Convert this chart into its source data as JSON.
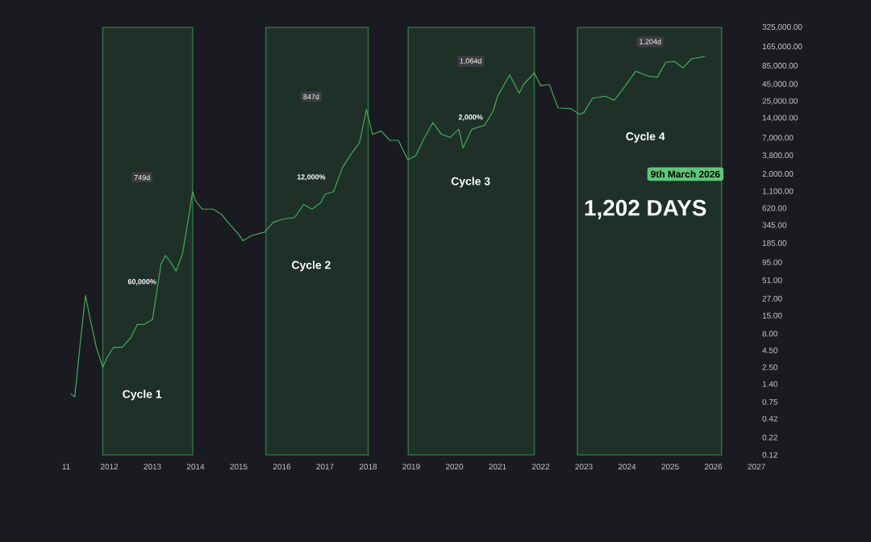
{
  "chart_data": {
    "type": "line",
    "log": true,
    "grid": false,
    "marker": "none",
    "line_style": "solid",
    "xlim": [
      2011,
      2027
    ],
    "ylim": [
      0.12,
      325000
    ],
    "xticks": [
      {
        "value": 2011,
        "label": "11"
      },
      2012,
      2013,
      2014,
      2015,
      2016,
      2017,
      2018,
      2019,
      2020,
      2021,
      2022,
      2023,
      2024,
      2025,
      2026,
      2027
    ],
    "yticks": [
      {
        "value": 325000,
        "label": "325,000.00"
      },
      {
        "value": 165000,
        "label": "165,000.00"
      },
      {
        "value": 85000,
        "label": "85,000.00"
      },
      {
        "value": 45000,
        "label": "45,000.00"
      },
      {
        "value": 25000,
        "label": "25,000.00"
      },
      {
        "value": 14000,
        "label": "14,000.00"
      },
      {
        "value": 7000,
        "label": "7,000.00"
      },
      {
        "value": 3800,
        "label": "3,800.00"
      },
      {
        "value": 2000,
        "label": "2,000.00"
      },
      {
        "value": 1100,
        "label": "1,100.00"
      },
      {
        "value": 620,
        "label": "620.00"
      },
      {
        "value": 345,
        "label": "345.00"
      },
      {
        "value": 185,
        "label": "185.00"
      },
      {
        "value": 95,
        "label": "95.00"
      },
      {
        "value": 51,
        "label": "51.00"
      },
      {
        "value": 27,
        "label": "27.00"
      },
      {
        "value": 15,
        "label": "15.00"
      },
      {
        "value": 8,
        "label": "8.00"
      },
      {
        "value": 4.5,
        "label": "4.50"
      },
      {
        "value": 2.5,
        "label": "2.50"
      },
      {
        "value": 1.4,
        "label": "1.40"
      },
      {
        "value": 0.75,
        "label": "0.75"
      },
      {
        "value": 0.42,
        "label": "0.42"
      },
      {
        "value": 0.22,
        "label": "0.22"
      },
      {
        "value": 0.12,
        "label": "0.12"
      }
    ],
    "x": [
      2011.1,
      2011.2,
      2011.35,
      2011.45,
      2011.55,
      2011.7,
      2011.85,
      2011.95,
      2012.1,
      2012.3,
      2012.5,
      2012.65,
      2012.8,
      2013.0,
      2013.2,
      2013.3,
      2013.4,
      2013.55,
      2013.7,
      2013.85,
      2013.93,
      2014.0,
      2014.15,
      2014.4,
      2014.6,
      2014.8,
      2015.0,
      2015.1,
      2015.3,
      2015.6,
      2015.8,
      2016.0,
      2016.3,
      2016.5,
      2016.7,
      2016.9,
      2017.0,
      2017.2,
      2017.4,
      2017.6,
      2017.8,
      2017.96,
      2018.1,
      2018.3,
      2018.5,
      2018.7,
      2018.92,
      2019.1,
      2019.3,
      2019.5,
      2019.7,
      2019.9,
      2020.1,
      2020.2,
      2020.4,
      2020.7,
      2020.9,
      2021.0,
      2021.28,
      2021.5,
      2021.6,
      2021.85,
      2022.0,
      2022.2,
      2022.4,
      2022.7,
      2022.9,
      2023.0,
      2023.2,
      2023.5,
      2023.7,
      2023.9,
      2024.2,
      2024.5,
      2024.7,
      2024.9,
      2025.1,
      2025.3,
      2025.5,
      2025.7,
      2025.8
    ],
    "series": [
      {
        "color": "#3fae5a",
        "values": [
          1.0,
          0.9,
          8,
          30,
          14,
          5,
          2.5,
          3.5,
          5,
          5,
          7,
          11,
          11,
          13,
          90,
          120,
          100,
          70,
          130,
          500,
          1100,
          800,
          600,
          600,
          500,
          350,
          250,
          200,
          240,
          270,
          380,
          420,
          450,
          700,
          600,
          750,
          1000,
          1100,
          2500,
          4000,
          6000,
          19000,
          8000,
          9000,
          6500,
          6500,
          3300,
          3800,
          7000,
          12000,
          8000,
          7200,
          9500,
          5000,
          9500,
          11000,
          18000,
          30000,
          63000,
          33000,
          45000,
          67000,
          43000,
          45000,
          20000,
          19500,
          16000,
          17000,
          28000,
          30000,
          26000,
          38000,
          71000,
          60000,
          58000,
          97000,
          100000,
          80000,
          110000,
          115000,
          120000
        ]
      }
    ],
    "bands": [
      {
        "axis": "x",
        "from": 2011.85,
        "to": 2013.93,
        "color": "#2f6e45"
      },
      {
        "axis": "x",
        "from": 2015.63,
        "to": 2018.0,
        "color": "#2f6e45"
      },
      {
        "axis": "x",
        "from": 2018.93,
        "to": 2021.85,
        "color": "#2f6e45"
      },
      {
        "axis": "x",
        "from": 2022.85,
        "to": 2026.19,
        "color": "#2f6e45"
      }
    ],
    "annotations": [
      "749d",
      "60,000%",
      "Cycle 1",
      "847d",
      "12,000%",
      "Cycle 2",
      "1,064d",
      "2,000%",
      "Cycle 3",
      "1,204d",
      "Cycle 4",
      "9th March 2026",
      "1,202 DAYS"
    ]
  }
}
